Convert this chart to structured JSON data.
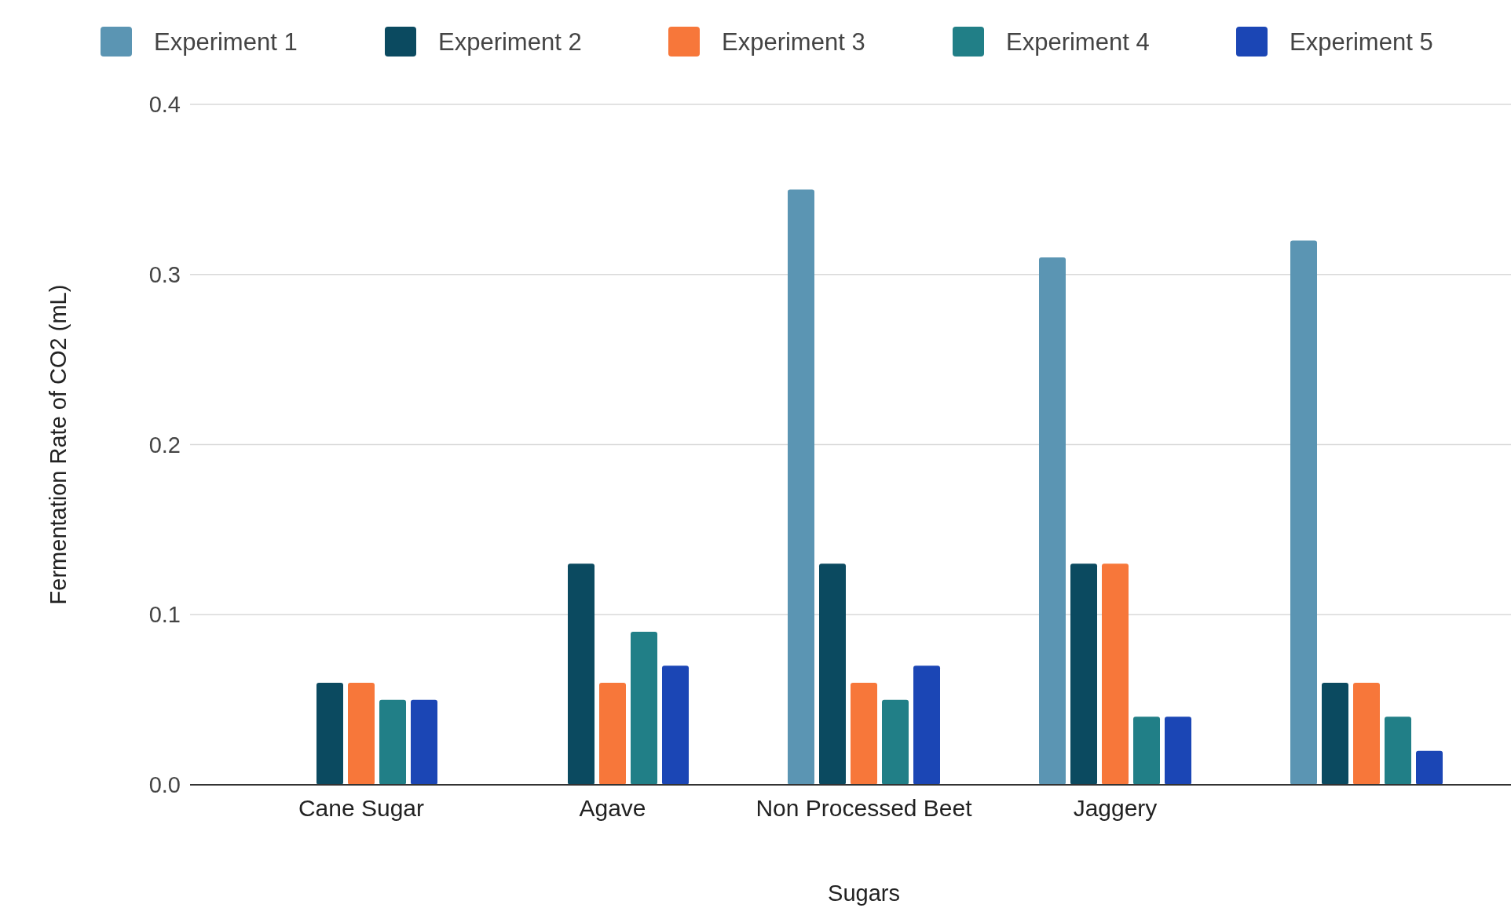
{
  "chart_data": {
    "type": "bar",
    "xlabel": "Sugars",
    "ylabel": "Fermentation Rate of CO2 (mL)",
    "categories": [
      "Cane Sugar",
      "Agave",
      "Non Processed Beet",
      "Jaggery",
      null
    ],
    "series": [
      {
        "name": "Experiment 1",
        "color": "#5b95b3",
        "values": [
          null,
          null,
          0.35,
          0.31,
          0.32
        ]
      },
      {
        "name": "Experiment 2",
        "color": "#0b4a60",
        "values": [
          0.06,
          0.13,
          0.13,
          0.13,
          0.06
        ]
      },
      {
        "name": "Experiment 3",
        "color": "#f7773a",
        "values": [
          0.06,
          0.06,
          0.06,
          0.13,
          0.06
        ]
      },
      {
        "name": "Experiment 4",
        "color": "#217f87",
        "values": [
          0.05,
          0.09,
          0.05,
          0.04,
          0.04
        ]
      },
      {
        "name": "Experiment 5",
        "color": "#1b46b5",
        "values": [
          0.05,
          0.07,
          0.07,
          0.04,
          0.02
        ]
      }
    ],
    "ylim": [
      0,
      0.4
    ],
    "yticks": [
      {
        "value": 0,
        "label": "0.0"
      },
      {
        "value": 0.1,
        "label": "0.1"
      },
      {
        "value": 0.2,
        "label": "0.2"
      },
      {
        "value": 0.3,
        "label": "0.3"
      },
      {
        "value": 0.4,
        "label": "0.4"
      }
    ],
    "grid": "y",
    "legend": "top"
  }
}
